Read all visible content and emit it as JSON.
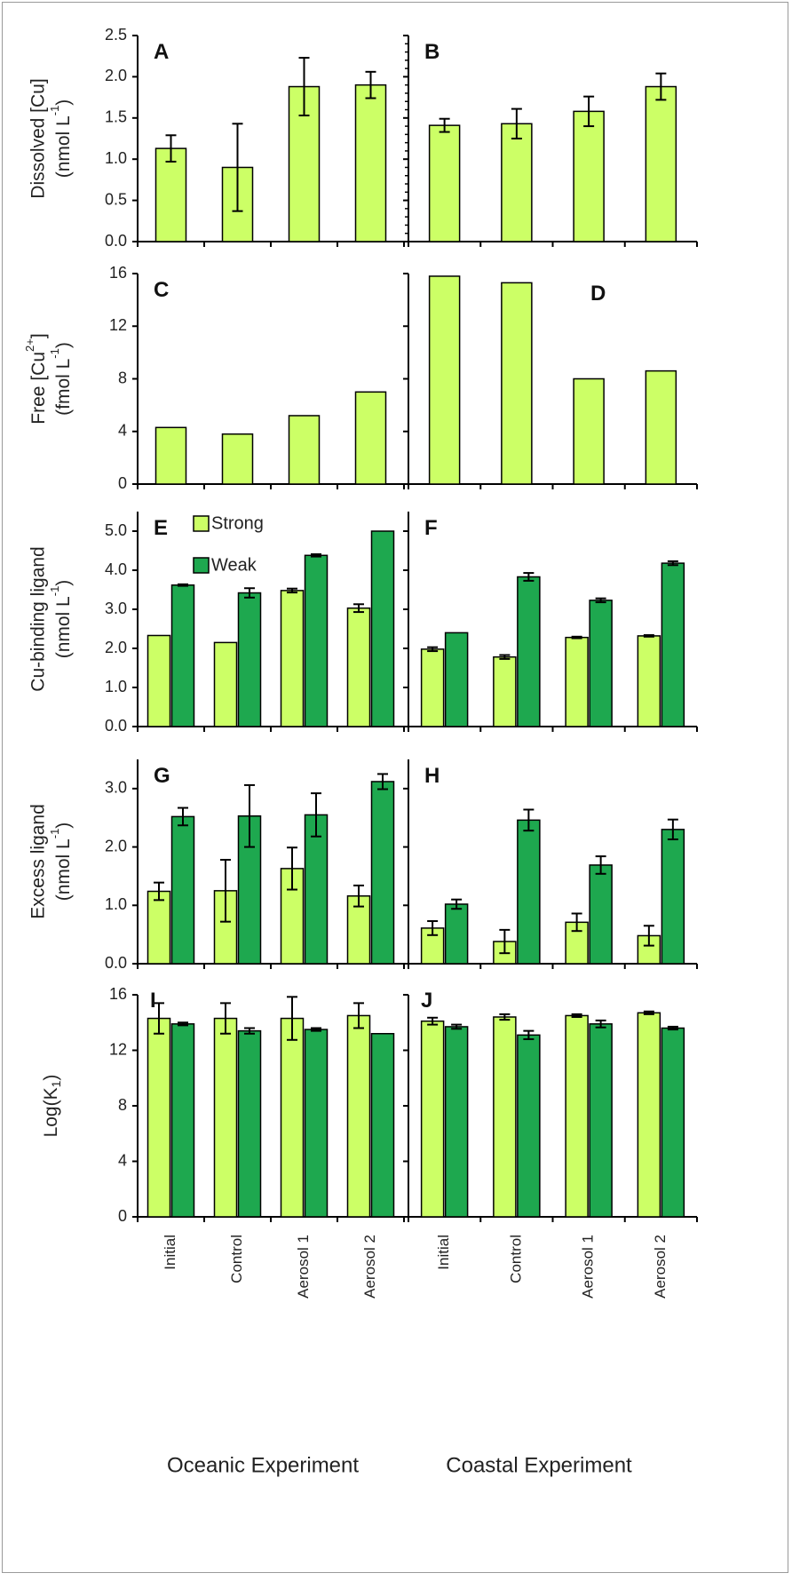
{
  "colors": {
    "strong": "#ccff66",
    "weak": "#1ea84f",
    "outline": "#000000",
    "axis": "#000000"
  },
  "chart_data": [
    {
      "id": "A",
      "type": "bar",
      "panel_label": "A",
      "ylabel_lines": [
        "Dissolved [Cu]",
        "(nmol L-1)"
      ],
      "ylim": [
        0,
        2.5
      ],
      "yticks": [
        0.0,
        0.5,
        1.0,
        1.5,
        2.0,
        2.5
      ],
      "ytick_labels": [
        "0.0",
        "0.5",
        "1.0",
        "1.5",
        "2.0",
        "2.5"
      ],
      "categories": [
        "Initial",
        "Control",
        "Aerosol 1",
        "Aerosol 2"
      ],
      "series": [
        {
          "name": "Dissolved Cu",
          "values": [
            1.13,
            0.9,
            1.88,
            1.9
          ],
          "errors": [
            0.16,
            0.53,
            0.35,
            0.16
          ]
        }
      ]
    },
    {
      "id": "B",
      "type": "bar",
      "panel_label": "B",
      "ylim": [
        0,
        2.5
      ],
      "categories": [
        "Initial",
        "Control",
        "Aerosol 1",
        "Aerosol 2"
      ],
      "series": [
        {
          "name": "Dissolved Cu",
          "values": [
            1.41,
            1.43,
            1.58,
            1.88
          ],
          "errors": [
            0.08,
            0.18,
            0.18,
            0.16
          ]
        }
      ]
    },
    {
      "id": "C",
      "type": "bar",
      "panel_label": "C",
      "ylabel_lines": [
        "Free [Cu2+]",
        "(fmol L-1)"
      ],
      "ylim": [
        0,
        16
      ],
      "yticks": [
        0,
        4,
        8,
        12,
        16
      ],
      "ytick_labels": [
        "0",
        "4",
        "8",
        "12",
        "16"
      ],
      "categories": [
        "Initial",
        "Control",
        "Aerosol 1",
        "Aerosol 2"
      ],
      "series": [
        {
          "name": "Free Cu2+",
          "values": [
            4.3,
            3.8,
            5.2,
            7.0
          ]
        }
      ]
    },
    {
      "id": "D",
      "type": "bar",
      "panel_label": "D",
      "ylim": [
        0,
        16
      ],
      "categories": [
        "Initial",
        "Control",
        "Aerosol 1",
        "Aerosol 2"
      ],
      "series": [
        {
          "name": "Free Cu2+",
          "values": [
            15.8,
            15.3,
            8.0,
            8.6
          ]
        }
      ]
    },
    {
      "id": "E",
      "type": "bar",
      "panel_label": "E",
      "ylabel_lines": [
        "Cu-binding ligand",
        "(nmol L-1)"
      ],
      "ylim": [
        0,
        5.5
      ],
      "yticks": [
        0.0,
        1.0,
        2.0,
        3.0,
        4.0,
        5.0
      ],
      "ytick_labels": [
        "0.0",
        "1.0",
        "2.0",
        "3.0",
        "4.0",
        "5.0"
      ],
      "categories": [
        "Initial",
        "Control",
        "Aerosol 1",
        "Aerosol 2"
      ],
      "legend": [
        "Strong",
        "Weak"
      ],
      "series": [
        {
          "name": "Strong",
          "values": [
            2.33,
            2.15,
            3.48,
            3.03
          ],
          "errors": [
            0.0,
            0.0,
            0.05,
            0.1
          ]
        },
        {
          "name": "Weak",
          "values": [
            3.62,
            3.42,
            4.38,
            5.0
          ],
          "errors": [
            0.02,
            0.12,
            0.03,
            0.0
          ]
        }
      ]
    },
    {
      "id": "F",
      "type": "bar",
      "panel_label": "F",
      "ylim": [
        0,
        5.5
      ],
      "categories": [
        "Initial",
        "Control",
        "Aerosol 1",
        "Aerosol 2"
      ],
      "series": [
        {
          "name": "Strong",
          "values": [
            1.98,
            1.78,
            2.28,
            2.32
          ],
          "errors": [
            0.05,
            0.05,
            0.02,
            0.02
          ]
        },
        {
          "name": "Weak",
          "values": [
            2.4,
            3.83,
            3.23,
            4.18
          ],
          "errors": [
            0.0,
            0.1,
            0.05,
            0.05
          ]
        }
      ]
    },
    {
      "id": "G",
      "type": "bar",
      "panel_label": "G",
      "ylabel_lines": [
        "Excess ligand",
        "(nmol L-1)"
      ],
      "ylim": [
        0,
        3.5
      ],
      "yticks": [
        0.0,
        1.0,
        2.0,
        3.0
      ],
      "ytick_labels": [
        "0.0",
        "1.0",
        "2.0",
        "3.0"
      ],
      "categories": [
        "Initial",
        "Control",
        "Aerosol 1",
        "Aerosol 2"
      ],
      "series": [
        {
          "name": "Strong",
          "values": [
            1.24,
            1.25,
            1.63,
            1.16
          ],
          "errors": [
            0.15,
            0.53,
            0.36,
            0.18
          ]
        },
        {
          "name": "Weak",
          "values": [
            2.52,
            2.53,
            2.55,
            3.12
          ],
          "errors": [
            0.15,
            0.53,
            0.37,
            0.13
          ]
        }
      ]
    },
    {
      "id": "H",
      "type": "bar",
      "panel_label": "H",
      "ylim": [
        0,
        3.5
      ],
      "categories": [
        "Initial",
        "Control",
        "Aerosol 1",
        "Aerosol 2"
      ],
      "series": [
        {
          "name": "Strong",
          "values": [
            0.61,
            0.38,
            0.71,
            0.48
          ],
          "errors": [
            0.12,
            0.2,
            0.15,
            0.17
          ]
        },
        {
          "name": "Weak",
          "values": [
            1.02,
            2.46,
            1.69,
            2.3
          ],
          "errors": [
            0.08,
            0.18,
            0.15,
            0.17
          ]
        }
      ]
    },
    {
      "id": "I",
      "type": "bar",
      "panel_label": "I",
      "ylabel_lines": [
        "Log(K1)"
      ],
      "ylim": [
        0,
        16
      ],
      "yticks": [
        0,
        4,
        8,
        12,
        16
      ],
      "ytick_labels": [
        "0",
        "4",
        "8",
        "12",
        "16"
      ],
      "categories": [
        "Initial",
        "Control",
        "Aerosol 1",
        "Aerosol 2"
      ],
      "series": [
        {
          "name": "Strong",
          "values": [
            14.3,
            14.3,
            14.3,
            14.5
          ],
          "errors": [
            1.1,
            1.1,
            1.55,
            0.9
          ]
        },
        {
          "name": "Weak",
          "values": [
            13.9,
            13.4,
            13.5,
            13.2
          ],
          "errors": [
            0.1,
            0.2,
            0.1,
            0.0
          ]
        }
      ]
    },
    {
      "id": "J",
      "type": "bar",
      "panel_label": "J",
      "ylim": [
        0,
        16
      ],
      "categories": [
        "Initial",
        "Control",
        "Aerosol 1",
        "Aerosol 2"
      ],
      "series": [
        {
          "name": "Strong",
          "values": [
            14.1,
            14.4,
            14.5,
            14.7
          ],
          "errors": [
            0.25,
            0.2,
            0.1,
            0.1
          ]
        },
        {
          "name": "Weak",
          "values": [
            13.7,
            13.1,
            13.9,
            13.6
          ],
          "errors": [
            0.15,
            0.3,
            0.25,
            0.1
          ]
        }
      ]
    }
  ],
  "x_axis": {
    "category_labels": [
      "Initial",
      "Control",
      "Aerosol 1",
      "Aerosol 2"
    ],
    "group_titles": [
      "Oceanic Experiment",
      "Coastal Experiment"
    ]
  }
}
